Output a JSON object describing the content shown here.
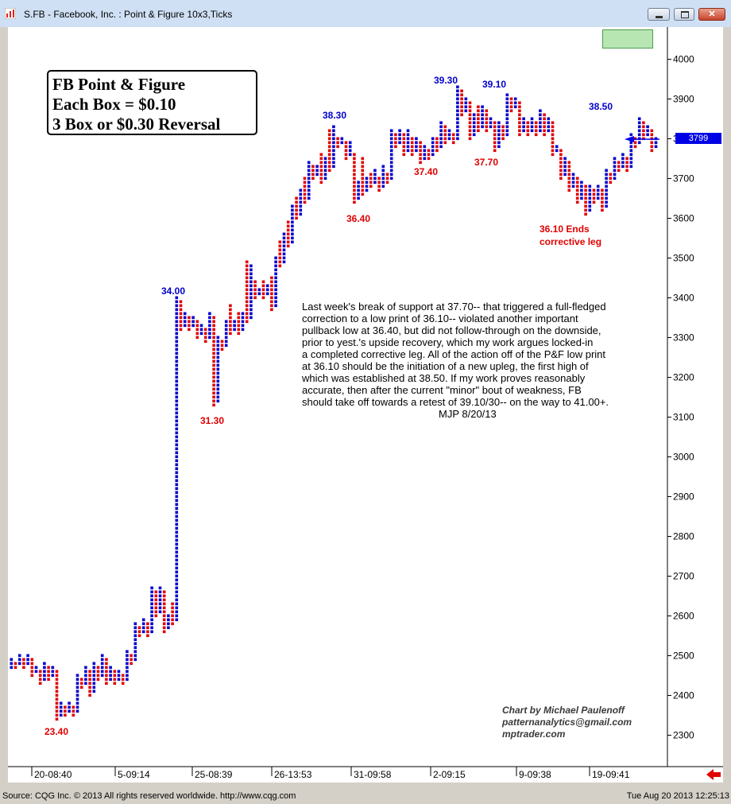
{
  "window": {
    "title": "S.FB - Facebook, Inc. : Point & Figure 10x3,Ticks",
    "icons": [
      "app-icon",
      "minimize-icon",
      "maximize-icon",
      "close-icon"
    ]
  },
  "info_box": {
    "line1": "FB Point & Figure",
    "line2": "Each Box = $0.10",
    "line3": "3 Box or $0.30 Reversal"
  },
  "commentary": {
    "lines": [
      "Last week's break of support at 37.70-- that triggered a full-fledged",
      "correction to a low print of 36.10-- violated another important",
      "pullback low at 36.40, but did not follow-through on the downside,",
      "prior to yest.'s upside recovery, which my work argues locked-in",
      "a completed corrective leg. All of the action off of the P&F low print",
      "at 36.10 should be the initiation of a new upleg, the first high of",
      "which was established at 38.50. If my work proves reasonably",
      "accurate, then after the current \"minor\" bout of weakness, FB",
      "should take off towards a retest of 39.10/30-- on the way to 41.00+."
    ],
    "signature": "MJP  8/20/13"
  },
  "credit": {
    "line1": "Chart by Michael Paulenoff",
    "line2": "patternanalytics@gmail.com",
    "line3": "mptrader.com"
  },
  "price_tag": "3799",
  "status": {
    "source": "Source: CQG Inc. © 2013 All rights reserved worldwide. http://www.cqg.com",
    "timestamp": "Tue Aug 20 2013 12:25:13"
  },
  "colors": {
    "x_column": "#0000cc",
    "o_column": "#e00000",
    "high_label": "#0000cc",
    "low_label": "#e00000",
    "price_tag": "#0000e6",
    "arrow": "#0000e6"
  },
  "chart_data": {
    "type": "point-and-figure",
    "box_size": 0.1,
    "reversal_boxes": 3,
    "y_unit": "cents",
    "ylim": [
      2300,
      4000
    ],
    "y_ticks": [
      "4000",
      "3900",
      "3800",
      "3700",
      "3600",
      "3500",
      "3400",
      "3300",
      "3200",
      "3100",
      "3000",
      "2900",
      "2800",
      "2700",
      "2600",
      "2500",
      "2400",
      "2300"
    ],
    "x_ticks": [
      "20-08:40",
      "5-09:14",
      "25-08:39",
      "26-13:53",
      "31-09:58",
      "2-09:15",
      "9-09:38",
      "19-09:41"
    ],
    "columns": [
      {
        "type": "X",
        "low": 24.7,
        "high": 24.9
      },
      {
        "type": "O",
        "low": 24.7,
        "high": 24.8
      },
      {
        "type": "X",
        "low": 24.8,
        "high": 25.0
      },
      {
        "type": "O",
        "low": 24.7,
        "high": 24.9
      },
      {
        "type": "X",
        "low": 24.8,
        "high": 25.0
      },
      {
        "type": "O",
        "low": 24.5,
        "high": 24.9
      },
      {
        "type": "X",
        "low": 24.6,
        "high": 24.7
      },
      {
        "type": "O",
        "low": 24.3,
        "high": 24.6
      },
      {
        "type": "X",
        "low": 24.4,
        "high": 24.8
      },
      {
        "type": "O",
        "low": 24.4,
        "high": 24.7
      },
      {
        "type": "X",
        "low": 24.5,
        "high": 24.7
      },
      {
        "type": "O",
        "low": 23.4,
        "high": 24.6
      },
      {
        "type": "X",
        "low": 23.5,
        "high": 23.8
      },
      {
        "type": "O",
        "low": 23.5,
        "high": 23.7
      },
      {
        "type": "X",
        "low": 23.6,
        "high": 23.8
      },
      {
        "type": "O",
        "low": 23.5,
        "high": 23.7
      },
      {
        "type": "X",
        "low": 23.6,
        "high": 24.5
      },
      {
        "type": "O",
        "low": 24.2,
        "high": 24.4
      },
      {
        "type": "X",
        "low": 24.3,
        "high": 24.7
      },
      {
        "type": "O",
        "low": 24.0,
        "high": 24.6
      },
      {
        "type": "X",
        "low": 24.1,
        "high": 24.8
      },
      {
        "type": "O",
        "low": 24.4,
        "high": 24.7
      },
      {
        "type": "X",
        "low": 24.5,
        "high": 25.0
      },
      {
        "type": "O",
        "low": 24.3,
        "high": 24.9
      },
      {
        "type": "X",
        "low": 24.4,
        "high": 24.7
      },
      {
        "type": "O",
        "low": 24.3,
        "high": 24.6
      },
      {
        "type": "X",
        "low": 24.4,
        "high": 24.6
      },
      {
        "type": "O",
        "low": 24.3,
        "high": 24.5
      },
      {
        "type": "X",
        "low": 24.4,
        "high": 25.1
      },
      {
        "type": "O",
        "low": 24.8,
        "high": 25.0
      },
      {
        "type": "X",
        "low": 24.9,
        "high": 25.8
      },
      {
        "type": "O",
        "low": 25.5,
        "high": 25.7
      },
      {
        "type": "X",
        "low": 25.6,
        "high": 25.9
      },
      {
        "type": "O",
        "low": 25.5,
        "high": 25.8
      },
      {
        "type": "X",
        "low": 25.6,
        "high": 26.7
      },
      {
        "type": "O",
        "low": 26.0,
        "high": 26.6
      },
      {
        "type": "X",
        "low": 26.1,
        "high": 26.7
      },
      {
        "type": "O",
        "low": 25.6,
        "high": 26.6
      },
      {
        "type": "X",
        "low": 25.7,
        "high": 26.0
      },
      {
        "type": "O",
        "low": 25.8,
        "high": 26.3
      },
      {
        "type": "X",
        "low": 25.9,
        "high": 34.0
      },
      {
        "type": "O",
        "low": 33.2,
        "high": 33.9
      },
      {
        "type": "X",
        "low": 33.3,
        "high": 33.6
      },
      {
        "type": "O",
        "low": 33.2,
        "high": 33.5
      },
      {
        "type": "X",
        "low": 33.3,
        "high": 33.5
      },
      {
        "type": "O",
        "low": 33.0,
        "high": 33.4
      },
      {
        "type": "X",
        "low": 33.1,
        "high": 33.3
      },
      {
        "type": "O",
        "low": 32.9,
        "high": 33.2
      },
      {
        "type": "X",
        "low": 33.0,
        "high": 33.6
      },
      {
        "type": "O",
        "low": 31.3,
        "high": 33.5
      },
      {
        "type": "X",
        "low": 31.4,
        "high": 33.0
      },
      {
        "type": "O",
        "low": 32.7,
        "high": 32.9
      },
      {
        "type": "X",
        "low": 32.8,
        "high": 33.4
      },
      {
        "type": "O",
        "low": 33.1,
        "high": 33.8
      },
      {
        "type": "X",
        "low": 33.2,
        "high": 33.4
      },
      {
        "type": "O",
        "low": 33.1,
        "high": 33.6
      },
      {
        "type": "X",
        "low": 33.2,
        "high": 33.6
      },
      {
        "type": "O",
        "low": 33.4,
        "high": 34.9
      },
      {
        "type": "X",
        "low": 33.5,
        "high": 34.8
      },
      {
        "type": "O",
        "low": 34.0,
        "high": 34.4
      },
      {
        "type": "X",
        "low": 34.1,
        "high": 34.2
      },
      {
        "type": "O",
        "low": 34.0,
        "high": 34.4
      },
      {
        "type": "X",
        "low": 34.1,
        "high": 34.3
      },
      {
        "type": "O",
        "low": 33.7,
        "high": 34.5
      },
      {
        "type": "X",
        "low": 33.8,
        "high": 35.0
      },
      {
        "type": "O",
        "low": 34.8,
        "high": 35.4
      },
      {
        "type": "X",
        "low": 34.9,
        "high": 35.6
      },
      {
        "type": "O",
        "low": 35.3,
        "high": 35.9
      },
      {
        "type": "X",
        "low": 35.4,
        "high": 36.3
      },
      {
        "type": "O",
        "low": 36.0,
        "high": 36.5
      },
      {
        "type": "X",
        "low": 36.1,
        "high": 36.7
      },
      {
        "type": "O",
        "low": 36.4,
        "high": 37.0
      },
      {
        "type": "X",
        "low": 36.5,
        "high": 37.4
      },
      {
        "type": "O",
        "low": 37.0,
        "high": 37.3
      },
      {
        "type": "X",
        "low": 37.1,
        "high": 37.3
      },
      {
        "type": "O",
        "low": 36.9,
        "high": 37.6
      },
      {
        "type": "X",
        "low": 37.0,
        "high": 37.5
      },
      {
        "type": "O",
        "low": 37.2,
        "high": 38.2
      },
      {
        "type": "X",
        "low": 37.3,
        "high": 38.3
      },
      {
        "type": "O",
        "low": 37.8,
        "high": 38.0
      },
      {
        "type": "X",
        "low": 37.9,
        "high": 38.0
      },
      {
        "type": "O",
        "low": 37.5,
        "high": 37.9
      },
      {
        "type": "X",
        "low": 37.6,
        "high": 37.9
      },
      {
        "type": "O",
        "low": 36.4,
        "high": 37.6
      },
      {
        "type": "X",
        "low": 36.5,
        "high": 36.9
      },
      {
        "type": "O",
        "low": 36.6,
        "high": 37.5
      },
      {
        "type": "X",
        "low": 36.7,
        "high": 37.0
      },
      {
        "type": "O",
        "low": 36.8,
        "high": 37.1
      },
      {
        "type": "X",
        "low": 36.9,
        "high": 37.2
      },
      {
        "type": "O",
        "low": 36.7,
        "high": 37.0
      },
      {
        "type": "X",
        "low": 36.8,
        "high": 37.3
      },
      {
        "type": "O",
        "low": 36.9,
        "high": 37.1
      },
      {
        "type": "X",
        "low": 37.0,
        "high": 38.2
      },
      {
        "type": "O",
        "low": 37.8,
        "high": 38.1
      },
      {
        "type": "X",
        "low": 37.9,
        "high": 38.2
      },
      {
        "type": "O",
        "low": 37.6,
        "high": 38.1
      },
      {
        "type": "X",
        "low": 37.7,
        "high": 38.2
      },
      {
        "type": "O",
        "low": 37.6,
        "high": 38.0
      },
      {
        "type": "X",
        "low": 37.7,
        "high": 38.0
      },
      {
        "type": "O",
        "low": 37.4,
        "high": 37.9
      },
      {
        "type": "X",
        "low": 37.5,
        "high": 37.8
      },
      {
        "type": "O",
        "low": 37.5,
        "high": 37.7
      },
      {
        "type": "X",
        "low": 37.6,
        "high": 38.0
      },
      {
        "type": "O",
        "low": 37.7,
        "high": 38.0
      },
      {
        "type": "X",
        "low": 37.8,
        "high": 38.4
      },
      {
        "type": "O",
        "low": 37.9,
        "high": 38.3
      },
      {
        "type": "X",
        "low": 38.0,
        "high": 38.2
      },
      {
        "type": "O",
        "low": 37.9,
        "high": 38.1
      },
      {
        "type": "X",
        "low": 38.0,
        "high": 39.3
      },
      {
        "type": "O",
        "low": 38.6,
        "high": 39.2
      },
      {
        "type": "X",
        "low": 38.7,
        "high": 39.0
      },
      {
        "type": "O",
        "low": 38.0,
        "high": 38.9
      },
      {
        "type": "X",
        "low": 38.1,
        "high": 38.6
      },
      {
        "type": "O",
        "low": 38.2,
        "high": 38.8
      },
      {
        "type": "X",
        "low": 38.3,
        "high": 38.8
      },
      {
        "type": "O",
        "low": 38.2,
        "high": 38.7
      },
      {
        "type": "X",
        "low": 38.3,
        "high": 38.5
      },
      {
        "type": "O",
        "low": 37.7,
        "high": 38.4
      },
      {
        "type": "X",
        "low": 37.8,
        "high": 38.4
      },
      {
        "type": "O",
        "low": 38.0,
        "high": 38.3
      },
      {
        "type": "X",
        "low": 38.1,
        "high": 39.1
      },
      {
        "type": "O",
        "low": 38.7,
        "high": 39.0
      },
      {
        "type": "X",
        "low": 38.8,
        "high": 39.0
      },
      {
        "type": "O",
        "low": 38.1,
        "high": 38.9
      },
      {
        "type": "X",
        "low": 38.2,
        "high": 38.5
      },
      {
        "type": "O",
        "low": 38.1,
        "high": 38.4
      },
      {
        "type": "X",
        "low": 38.2,
        "high": 38.5
      },
      {
        "type": "O",
        "low": 38.1,
        "high": 38.4
      },
      {
        "type": "X",
        "low": 38.2,
        "high": 38.7
      },
      {
        "type": "O",
        "low": 38.1,
        "high": 38.6
      },
      {
        "type": "X",
        "low": 38.2,
        "high": 38.5
      },
      {
        "type": "O",
        "low": 37.6,
        "high": 38.4
      },
      {
        "type": "X",
        "low": 37.7,
        "high": 37.8
      },
      {
        "type": "O",
        "low": 37.0,
        "high": 37.7
      },
      {
        "type": "X",
        "low": 37.1,
        "high": 37.5
      },
      {
        "type": "O",
        "low": 36.7,
        "high": 37.4
      },
      {
        "type": "X",
        "low": 36.8,
        "high": 37.1
      },
      {
        "type": "O",
        "low": 36.4,
        "high": 37.0
      },
      {
        "type": "X",
        "low": 36.5,
        "high": 36.9
      },
      {
        "type": "O",
        "low": 36.1,
        "high": 36.8
      },
      {
        "type": "X",
        "low": 36.2,
        "high": 36.8
      },
      {
        "type": "O",
        "low": 36.4,
        "high": 36.7
      },
      {
        "type": "X",
        "low": 36.5,
        "high": 36.8
      },
      {
        "type": "O",
        "low": 36.2,
        "high": 36.7
      },
      {
        "type": "X",
        "low": 36.3,
        "high": 37.2
      },
      {
        "type": "O",
        "low": 36.9,
        "high": 37.1
      },
      {
        "type": "X",
        "low": 37.0,
        "high": 37.5
      },
      {
        "type": "O",
        "low": 37.2,
        "high": 37.4
      },
      {
        "type": "X",
        "low": 37.3,
        "high": 37.6
      },
      {
        "type": "O",
        "low": 37.2,
        "high": 37.5
      },
      {
        "type": "X",
        "low": 37.3,
        "high": 38.1
      },
      {
        "type": "O",
        "low": 37.8,
        "high": 38.0
      },
      {
        "type": "X",
        "low": 37.9,
        "high": 38.5
      },
      {
        "type": "O",
        "low": 38.0,
        "high": 38.4
      },
      {
        "type": "X",
        "low": 38.1,
        "high": 38.3
      },
      {
        "type": "O",
        "low": 37.7,
        "high": 38.2
      },
      {
        "type": "X",
        "low": 37.8,
        "high": 38.0
      }
    ],
    "annotations": [
      {
        "text": "23.40",
        "value": 23.4,
        "type": "low"
      },
      {
        "text": "34.00",
        "value": 34.0,
        "type": "high"
      },
      {
        "text": "31.30",
        "value": 31.3,
        "type": "low"
      },
      {
        "text": "38.30",
        "value": 38.3,
        "type": "high"
      },
      {
        "text": "36.40",
        "value": 36.4,
        "type": "low"
      },
      {
        "text": "37.40",
        "value": 37.4,
        "type": "low"
      },
      {
        "text": "39.30",
        "value": 39.3,
        "type": "high"
      },
      {
        "text": "39.10",
        "value": 39.1,
        "type": "high"
      },
      {
        "text": "37.70",
        "value": 37.7,
        "type": "low"
      },
      {
        "text": "38.50",
        "value": 38.5,
        "type": "high"
      },
      {
        "text": "36.10 Ends",
        "value": 36.1,
        "type": "low"
      },
      {
        "text": "corrective leg",
        "value": 36.1,
        "type": "low"
      }
    ],
    "last_price": 37.99
  }
}
